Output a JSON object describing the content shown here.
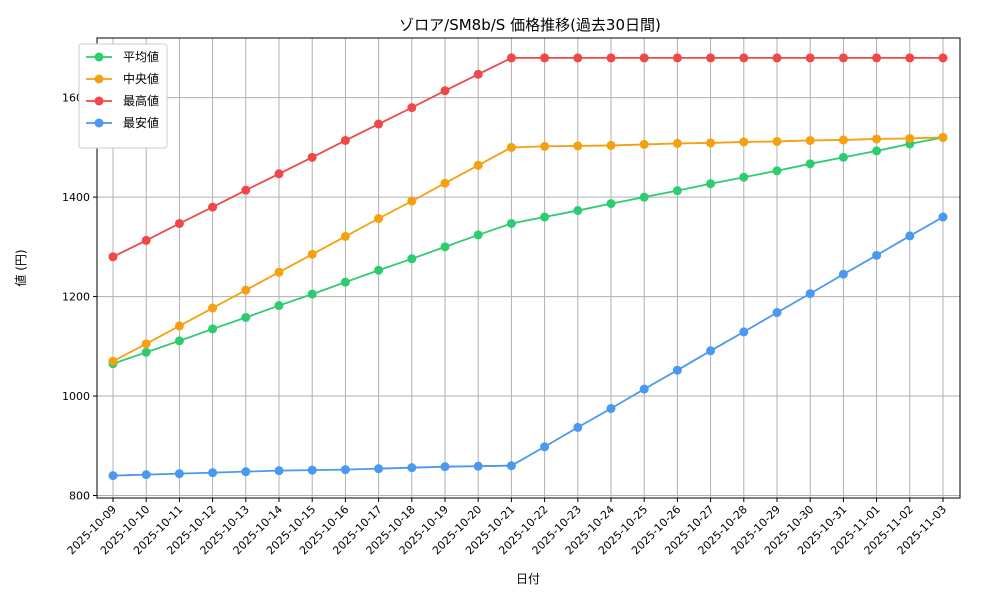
{
  "chart_data": {
    "type": "line",
    "title": "ゾロア/SM8b/S 価格推移(過去30日間)",
    "xlabel": "日付",
    "ylabel": "値 (円)",
    "ylim": [
      795,
      1720
    ],
    "yticks": [
      800,
      1000,
      1200,
      1400,
      1600
    ],
    "grid": true,
    "legend_position": "top-left",
    "categories": [
      "2025-10-09",
      "2025-10-10",
      "2025-10-11",
      "2025-10-12",
      "2025-10-13",
      "2025-10-14",
      "2025-10-15",
      "2025-10-16",
      "2025-10-17",
      "2025-10-18",
      "2025-10-19",
      "2025-10-20",
      "2025-10-21",
      "2025-10-22",
      "2025-10-23",
      "2025-10-24",
      "2025-10-25",
      "2025-10-26",
      "2025-10-27",
      "2025-10-28",
      "2025-10-29",
      "2025-10-30",
      "2025-10-31",
      "2025-11-01",
      "2025-11-02",
      "2025-11-03"
    ],
    "series": [
      {
        "name": "平均値",
        "color": "#2ecc71",
        "values": [
          1065,
          1088,
          1111,
          1135,
          1158,
          1182,
          1205,
          1229,
          1253,
          1276,
          1300,
          1324,
          1347,
          1360,
          1373,
          1387,
          1400,
          1413,
          1427,
          1440,
          1453,
          1467,
          1480,
          1493,
          1507,
          1520
        ]
      },
      {
        "name": "中央値",
        "color": "#f5a00f",
        "values": [
          1070,
          1105,
          1141,
          1177,
          1213,
          1249,
          1285,
          1321,
          1357,
          1392,
          1428,
          1464,
          1500,
          1502,
          1503,
          1504,
          1506,
          1508,
          1509,
          1511,
          1512,
          1514,
          1515,
          1517,
          1518,
          1520
        ]
      },
      {
        "name": "最高値",
        "color": "#f04848",
        "values": [
          1280,
          1313,
          1347,
          1380,
          1414,
          1447,
          1480,
          1514,
          1547,
          1580,
          1614,
          1647,
          1680,
          1680,
          1680,
          1680,
          1680,
          1680,
          1680,
          1680,
          1680,
          1680,
          1680,
          1680,
          1680,
          1680
        ]
      },
      {
        "name": "最安値",
        "color": "#4a98f0",
        "values": [
          840,
          842,
          844,
          846,
          848,
          850,
          851,
          852,
          854,
          856,
          858,
          859,
          860,
          898,
          937,
          975,
          1014,
          1052,
          1091,
          1129,
          1168,
          1206,
          1245,
          1283,
          1322,
          1360
        ]
      }
    ]
  }
}
